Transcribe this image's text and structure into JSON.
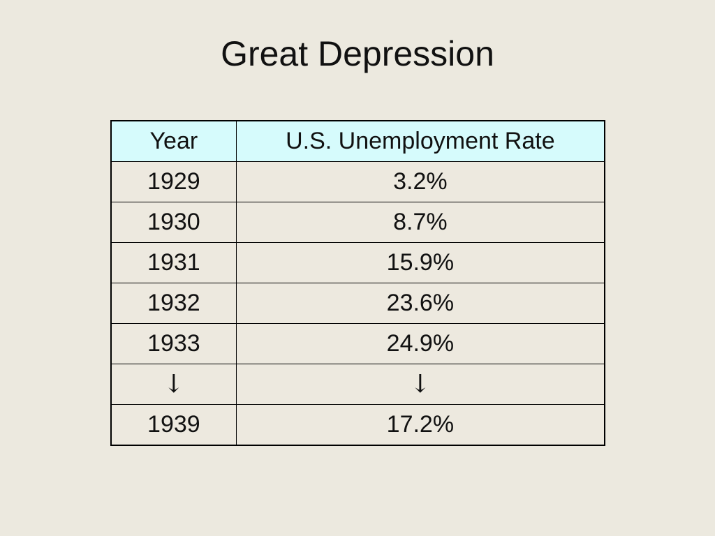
{
  "title": "Great Depression",
  "table": {
    "headers": [
      "Year",
      "U.S. Unemployment Rate"
    ],
    "rows": [
      [
        "1929",
        "3.2%"
      ],
      [
        "1930",
        "8.7%"
      ],
      [
        "1931",
        "15.9%"
      ],
      [
        "1932",
        "23.6%"
      ],
      [
        "1933",
        "24.9%"
      ],
      [
        "↓",
        "↓"
      ],
      [
        "1939",
        "17.2%"
      ]
    ]
  },
  "colors": {
    "background": "#ece9df",
    "header_fill": "#d6fbfc",
    "text": "#111111",
    "border": "#000000"
  }
}
